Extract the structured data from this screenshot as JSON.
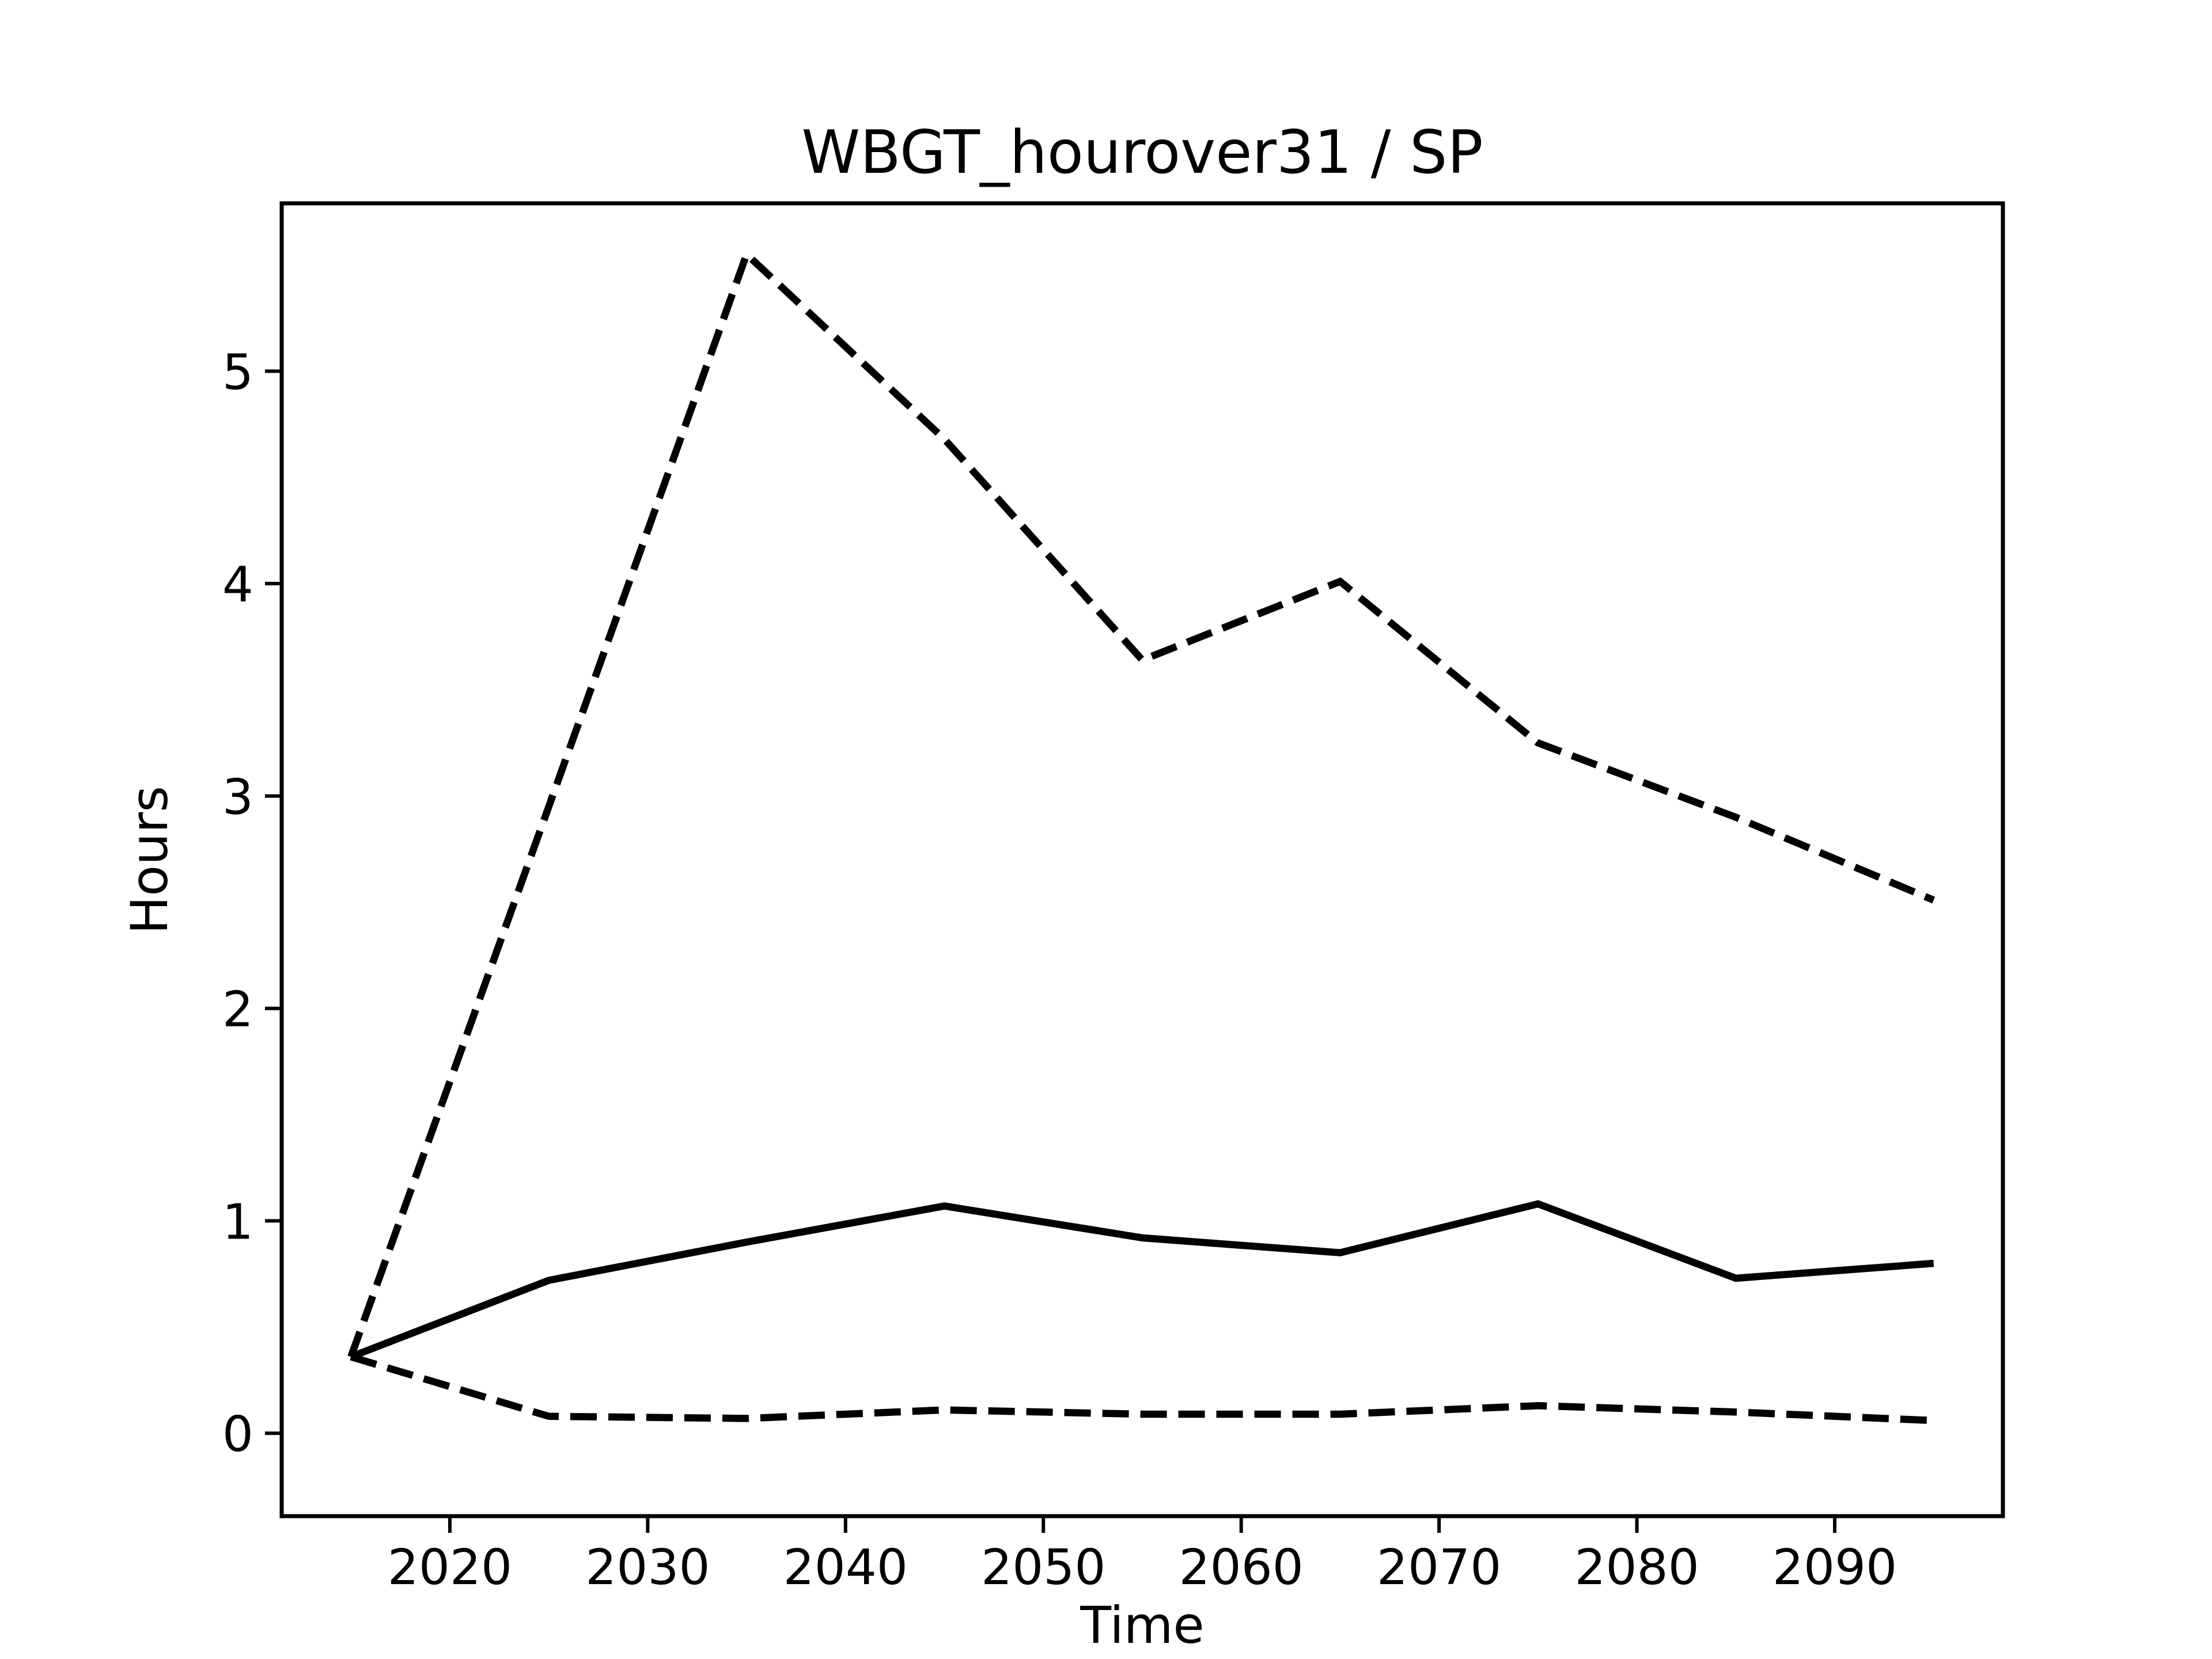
{
  "figure": {
    "title": "WBGT_hourover31 / SP",
    "background_color": "#ffffff",
    "line_color": "#000000"
  },
  "chart_data": {
    "type": "line",
    "title": "WBGT_hourover31 / SP",
    "xlabel": "Time",
    "ylabel": "Hours",
    "x": [
      2015,
      2025,
      2035,
      2045,
      2055,
      2065,
      2075,
      2085,
      2095
    ],
    "series": [
      {
        "name": "upper-dashed",
        "style": "dashed",
        "values": [
          0.36,
          2.95,
          5.55,
          4.68,
          3.64,
          4.01,
          3.25,
          2.9,
          2.51
        ]
      },
      {
        "name": "solid-middle",
        "style": "solid",
        "values": [
          0.36,
          0.72,
          0.9,
          1.07,
          0.92,
          0.85,
          1.08,
          0.73,
          0.8
        ]
      },
      {
        "name": "lower-dashed",
        "style": "dashed",
        "values": [
          0.36,
          0.08,
          0.07,
          0.11,
          0.09,
          0.09,
          0.13,
          0.1,
          0.06
        ]
      }
    ],
    "xticks": [
      2020,
      2030,
      2040,
      2050,
      2060,
      2070,
      2080,
      2090
    ],
    "yticks": [
      0,
      1,
      2,
      3,
      4,
      5
    ],
    "xlim": [
      2011.5,
      2098.5
    ],
    "ylim": [
      -0.39,
      5.79
    ],
    "grid": false,
    "legend": "none",
    "stroke_color": "#000000"
  }
}
